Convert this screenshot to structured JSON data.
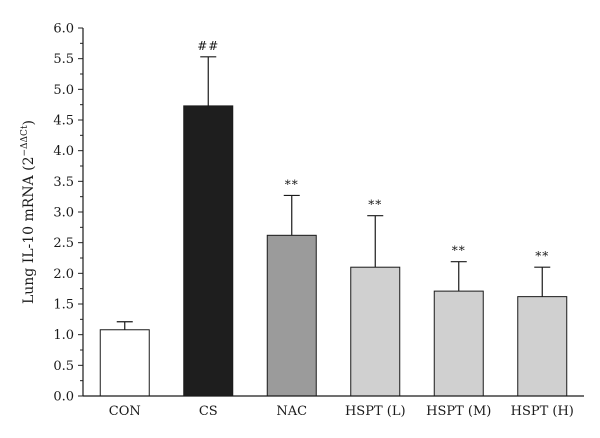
{
  "chart_data": {
    "type": "bar",
    "title": "",
    "xlabel": "",
    "ylabel": "Lung IL-10 mRNA (2",
    "ylabel_superscript": "−ΔΔCt",
    "ylabel_suffix": ")",
    "ylim": [
      0,
      6.0
    ],
    "yticks": [
      "0.0",
      "0.5",
      "1.0",
      "1.5",
      "2.0",
      "2.5",
      "3.0",
      "3.5",
      "4.0",
      "4.5",
      "5.0",
      "5.5",
      "6.0"
    ],
    "categories": [
      "CON",
      "CS",
      "NAC",
      "HSPT (L)",
      "HSPT (M)",
      "HSPT (H)"
    ],
    "values": [
      1.08,
      4.73,
      2.62,
      2.1,
      1.71,
      1.62
    ],
    "errors": [
      0.13,
      0.8,
      0.65,
      0.84,
      0.48,
      0.48
    ],
    "significance": [
      "",
      "##",
      "**",
      "**",
      "**",
      "**"
    ],
    "bar_colors": [
      "#ffffff",
      "#1e1e1e",
      "#9b9b9b",
      "#d0d0d0",
      "#d0d0d0",
      "#d0d0d0"
    ],
    "grid": false,
    "legend": "none"
  }
}
